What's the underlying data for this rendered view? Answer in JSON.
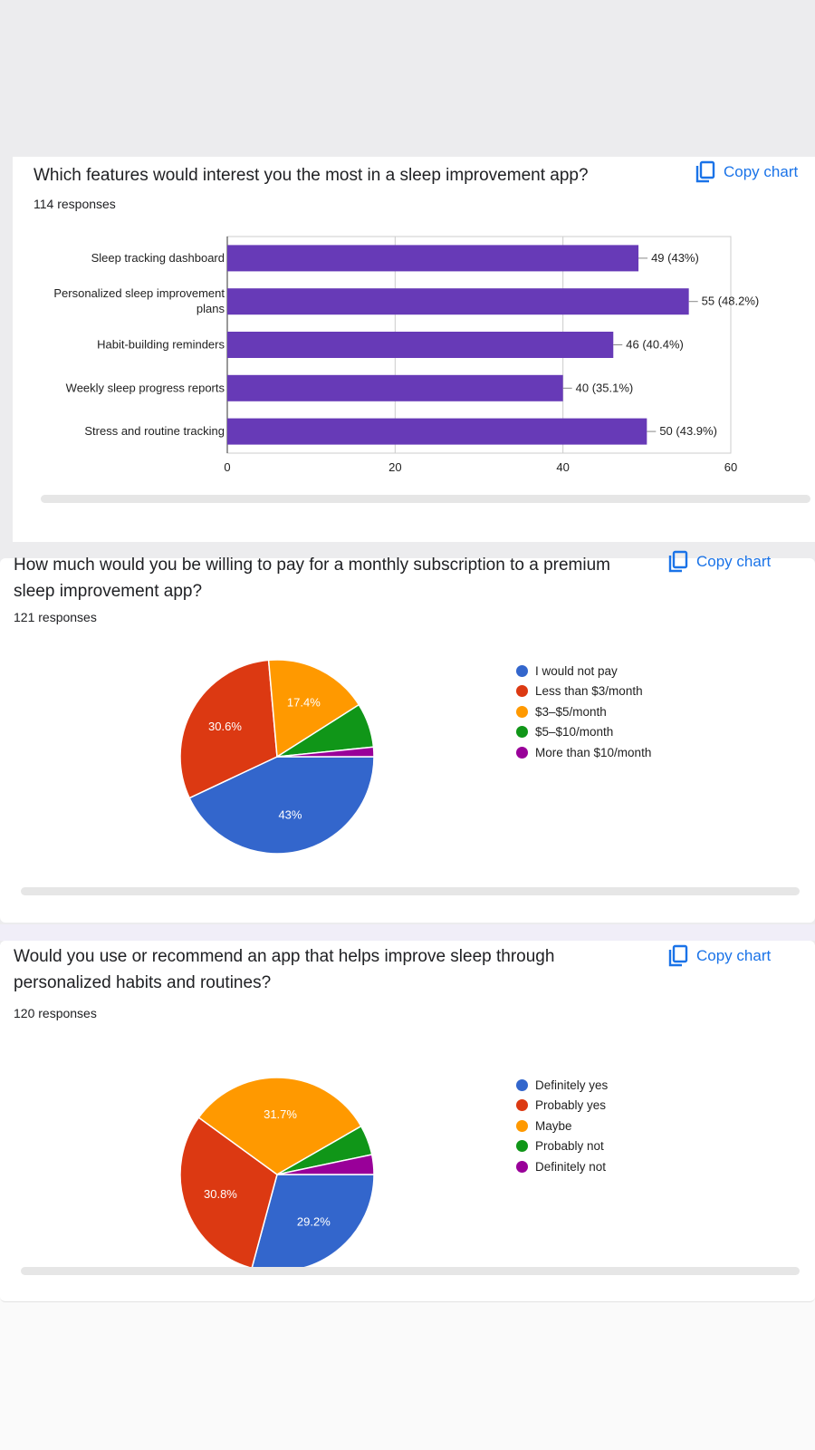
{
  "colors": {
    "bar": "#673ab7",
    "accent": "#1a73e8",
    "pie": [
      "#3366cc",
      "#dc3912",
      "#ff9900",
      "#109618",
      "#990099"
    ]
  },
  "copy_label": "Copy chart",
  "copy_icon": "copy-icon",
  "q1": {
    "title": "Which features would interest you the most in a sleep improvement app?",
    "responses": "114 responses"
  },
  "q2": {
    "title_line1": "How much would you be willing to pay for a monthly subscription to a premium",
    "title_line2": "sleep improvement app?",
    "responses": "121 responses"
  },
  "q3": {
    "title_line1": "Would you use or recommend an app that helps improve sleep through",
    "title_line2": "personalized habits and routines?",
    "responses": "120 responses"
  },
  "chart_data": [
    {
      "type": "bar",
      "orientation": "horizontal",
      "categories": [
        [
          "Sleep tracking dashboard"
        ],
        [
          "Personalized sleep improvement",
          "plans"
        ],
        [
          "Habit-building reminders"
        ],
        [
          "Weekly sleep progress reports"
        ],
        [
          "Stress and routine tracking"
        ]
      ],
      "values": [
        49,
        55,
        46,
        40,
        50
      ],
      "value_labels": [
        "49 (43%)",
        "55 (48.2%)",
        "46 (40.4%)",
        "40 (35.1%)",
        "50 (43.9%)"
      ],
      "xlim": [
        0,
        60
      ],
      "xticks": [
        0,
        20,
        40,
        60
      ],
      "grid": true
    },
    {
      "type": "pie",
      "labels": [
        "I would not pay",
        "Less than $3/month",
        "$3–$5/month",
        "$5–$10/month",
        "More than $10/month"
      ],
      "values": [
        43,
        30.6,
        17.4,
        7.4,
        1.6
      ],
      "slice_labels": [
        "43%",
        "30.6%",
        "17.4%",
        "",
        ""
      ],
      "legend_position": "right"
    },
    {
      "type": "pie",
      "labels": [
        "Definitely yes",
        "Probably yes",
        "Maybe",
        "Probably not",
        "Definitely not"
      ],
      "values": [
        29.2,
        30.8,
        31.7,
        5,
        3.3
      ],
      "slice_labels": [
        "29.2%",
        "30.8%",
        "31.7%",
        "",
        ""
      ],
      "legend_position": "right"
    }
  ]
}
